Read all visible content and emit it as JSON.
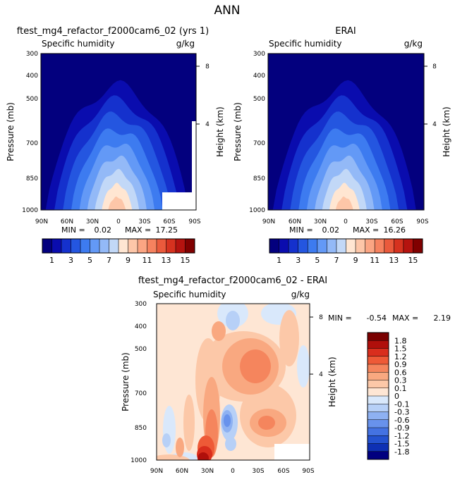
{
  "page_title": "ANN",
  "chart_data": [
    {
      "type": "heatmap",
      "panel": "model",
      "title": "ftest_mg4_refactor_f2000cam6_02 (yrs 1)",
      "variable": "Specific humidity",
      "units": "g/kg",
      "ylabel": "Pressure (mb)",
      "ylabel_right": "Height (km)",
      "x_ticks": [
        "90N",
        "60N",
        "30N",
        "0",
        "30S",
        "60S",
        "90S"
      ],
      "y_ticks": [
        "300",
        "400",
        "500",
        "700",
        "850",
        "1000"
      ],
      "height_ticks": [
        "8",
        "4"
      ],
      "ylim": [
        1000,
        300
      ],
      "stats": {
        "min_label": "MIN =",
        "min": "0.02",
        "max_label": "MAX =",
        "max": "17.25"
      },
      "peak": 17.25,
      "colorbar": {
        "tick_labels": [
          "1",
          "3",
          "5",
          "7",
          "9",
          "11",
          "13",
          "15"
        ],
        "colors": [
          "#03007e",
          "#0a0cae",
          "#1531cd",
          "#2456e0",
          "#3d7bf0",
          "#6399f6",
          "#93b9f7",
          "#c2d8f7",
          "#ffe6d2",
          "#fdc6a8",
          "#fba583",
          "#f6825f",
          "#ea5a3c",
          "#d6321f",
          "#b5130f",
          "#800000"
        ]
      }
    },
    {
      "type": "heatmap",
      "panel": "obs",
      "title": "ERAI",
      "variable": "Specific humidity",
      "units": "g/kg",
      "ylabel": "Pressure (mb)",
      "ylabel_right": "Height (km)",
      "x_ticks": [
        "90N",
        "60N",
        "30N",
        "0",
        "30S",
        "60S",
        "90S"
      ],
      "y_ticks": [
        "300",
        "400",
        "500",
        "700",
        "850",
        "1000"
      ],
      "height_ticks": [
        "8",
        "4"
      ],
      "ylim": [
        1000,
        300
      ],
      "stats": {
        "min_label": "MIN =",
        "min": "0.02",
        "max_label": "MAX =",
        "max": "16.26"
      },
      "peak": 16.26,
      "colorbar": {
        "tick_labels": [
          "1",
          "3",
          "5",
          "7",
          "9",
          "11",
          "13",
          "15"
        ],
        "colors": [
          "#03007e",
          "#0a0cae",
          "#1531cd",
          "#2456e0",
          "#3d7bf0",
          "#6399f6",
          "#93b9f7",
          "#c2d8f7",
          "#ffe6d2",
          "#fdc6a8",
          "#fba583",
          "#f6825f",
          "#ea5a3c",
          "#d6321f",
          "#b5130f",
          "#800000"
        ]
      }
    },
    {
      "type": "heatmap",
      "panel": "diff",
      "title": "ftest_mg4_refactor_f2000cam6_02 - ERAI",
      "variable": "Specific humidity",
      "units": "g/kg",
      "ylabel": "Pressure (mb)",
      "ylabel_right": "Height (km)",
      "x_ticks": [
        "90N",
        "60N",
        "30N",
        "0",
        "30S",
        "60S",
        "90S"
      ],
      "y_ticks": [
        "300",
        "400",
        "500",
        "700",
        "850",
        "1000"
      ],
      "height_ticks": [
        "8",
        "4"
      ],
      "ylim": [
        1000,
        300
      ],
      "stats": {
        "min_label": "MIN =",
        "min": "-0.54",
        "max_label": "MAX =",
        "max": "2.19"
      },
      "colorbar": {
        "tick_labels": [
          "1.8",
          "1.5",
          "1.2",
          "0.9",
          "0.6",
          "0.3",
          "0.1",
          "0",
          "-0.1",
          "-0.3",
          "-0.6",
          "-0.9",
          "-1.2",
          "-1.5",
          "-1.8"
        ],
        "colors": [
          "#7a0000",
          "#b00f0b",
          "#d92e1d",
          "#ee5a37",
          "#f5855d",
          "#f9a880",
          "#fcc8a8",
          "#fee6d4",
          "#d9e8fb",
          "#b7d0f7",
          "#8eb1f2",
          "#6892ec",
          "#4472e2",
          "#2452d0",
          "#0e30b4",
          "#00007f"
        ]
      }
    }
  ]
}
